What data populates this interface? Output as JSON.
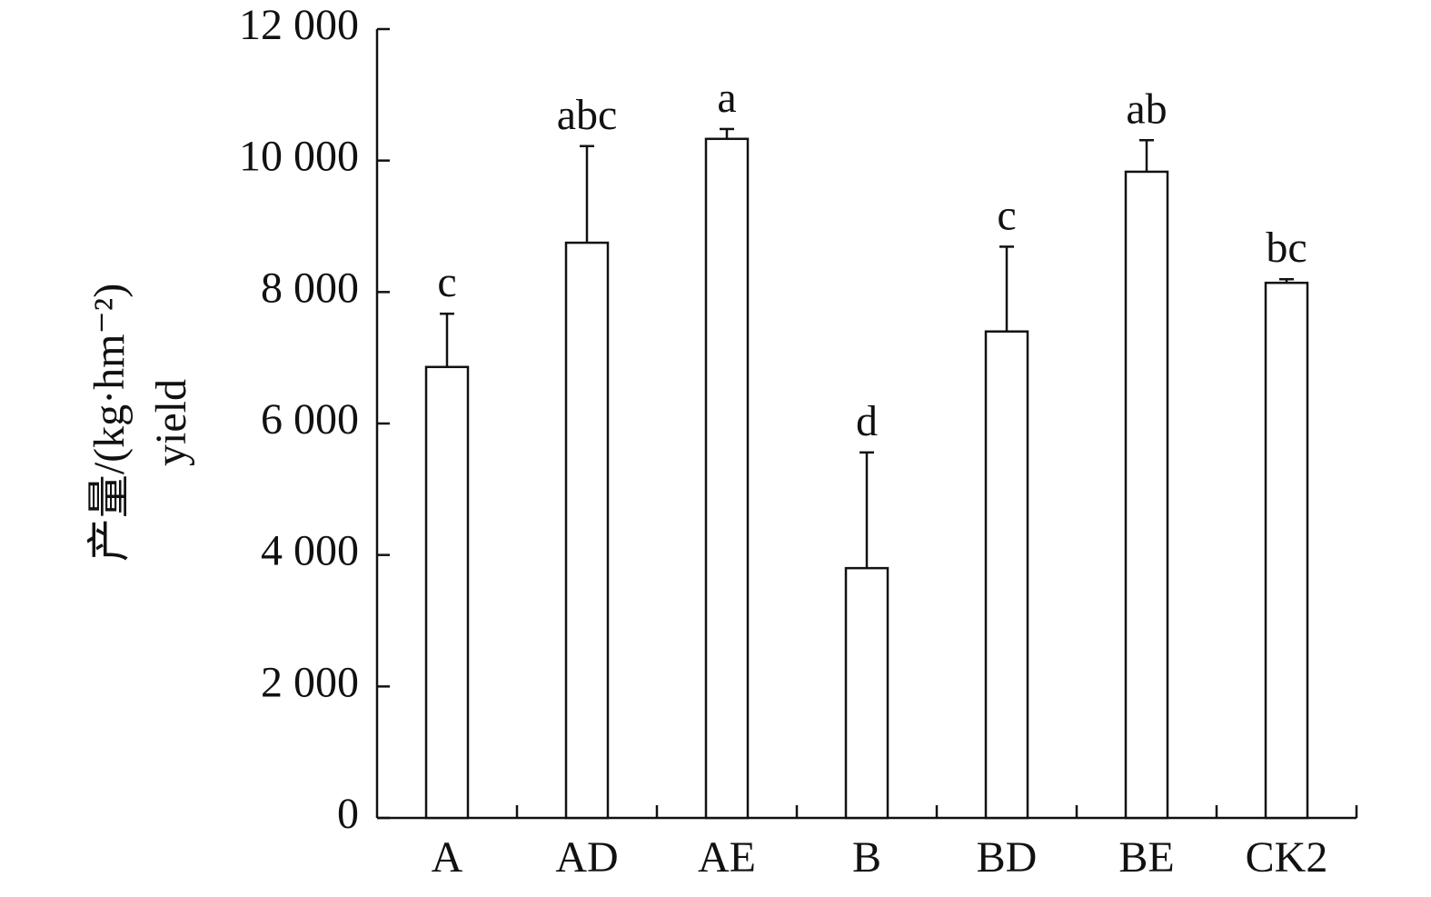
{
  "chart_data": {
    "type": "bar",
    "y_label": [
      "产量/(kg·hm⁻²)",
      "yield"
    ],
    "categories": [
      "A",
      "AD",
      "AE",
      "B",
      "BD",
      "BE",
      "CK2"
    ],
    "values": [
      6860,
      8750,
      10330,
      3800,
      7400,
      9830,
      8140
    ],
    "errors": [
      810,
      1470,
      150,
      1760,
      1290,
      480,
      55
    ],
    "annotations": [
      "c",
      "abc",
      "a",
      "d",
      "c",
      "ab",
      "bc"
    ],
    "color": "#ffffff",
    "ylim": [
      0,
      12000
    ],
    "yticks": [
      0,
      {
        "value": 2000,
        "label": "2 000"
      },
      {
        "value": 4000,
        "label": "4 000"
      },
      {
        "value": 6000,
        "label": "6 000"
      },
      {
        "value": 8000,
        "label": "8 000"
      },
      {
        "value": 10000,
        "label": "10 000"
      },
      {
        "value": 12000,
        "label": "12 000"
      }
    ],
    "grid": false
  }
}
